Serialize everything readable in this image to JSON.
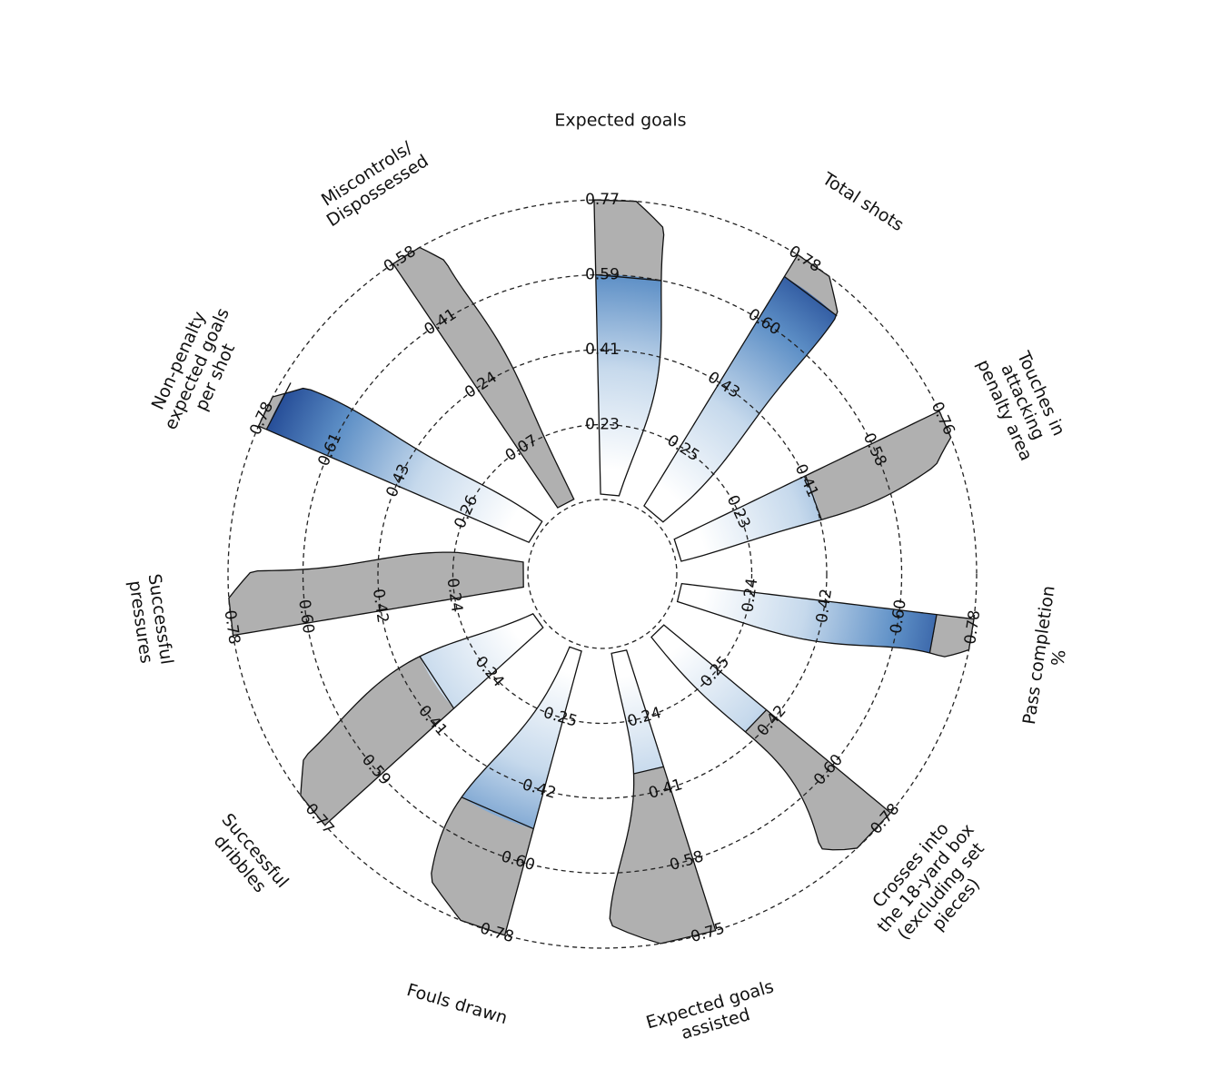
{
  "chart_data": {
    "type": "radial-violin",
    "rings": 4,
    "color_low": "#ffffff",
    "color_high": "#1f4592",
    "background_color": "#b0b0b0",
    "segments": [
      {
        "label": "Expected goals",
        "max": 0.77,
        "ticks": [
          "0.23",
          "0.41",
          "0.59",
          "0.77"
        ],
        "value": 0.59
      },
      {
        "label": "Total shots",
        "max": 0.78,
        "ticks": [
          "0.25",
          "0.43",
          "0.60",
          "0.78"
        ],
        "value": 0.72
      },
      {
        "label": "Touches in\nattacking\npenalty area",
        "max": 0.76,
        "ticks": [
          "0.23",
          "0.41",
          "0.58",
          "0.76"
        ],
        "value": 0.41
      },
      {
        "label": "Pass completion\n%",
        "max": 0.78,
        "ticks": [
          "0.24",
          "0.42",
          "0.60",
          "0.78"
        ],
        "value": 0.69
      },
      {
        "label": "Crosses into\nthe 18-yard box\n(excluding set\npieces)",
        "max": 0.78,
        "ticks": [
          "0.25",
          "0.42",
          "0.60",
          "0.78"
        ],
        "value": 0.4
      },
      {
        "label": "Expected goals\nassisted",
        "max": 0.75,
        "ticks": [
          "0.24",
          "0.41",
          "0.58",
          "0.75"
        ],
        "value": 0.36
      },
      {
        "label": "Fouls drawn",
        "max": 0.78,
        "ticks": [
          "0.25",
          "0.42",
          "0.60",
          "0.78"
        ],
        "value": 0.52
      },
      {
        "label": "Successful\ndribbles",
        "max": 0.77,
        "ticks": [
          "0.24",
          "0.41",
          "0.59",
          "0.77"
        ],
        "value": 0.36
      },
      {
        "label": "Successful\npressures",
        "max": 0.78,
        "ticks": [
          "0.24",
          "0.42",
          "0.60",
          "0.78"
        ],
        "value": 0.07
      },
      {
        "label": "Non-penalty\nexpected goals\nper shot",
        "max": 0.78,
        "ticks": [
          "0.26",
          "0.43",
          "0.61",
          "0.78"
        ],
        "value": 0.76
      },
      {
        "label": "Miscontrols/\nDispossessed",
        "max": 0.77,
        "ticks": [
          "0.07",
          "0.24",
          "0.41",
          "0.58"
        ],
        "value": 0.0
      }
    ]
  }
}
